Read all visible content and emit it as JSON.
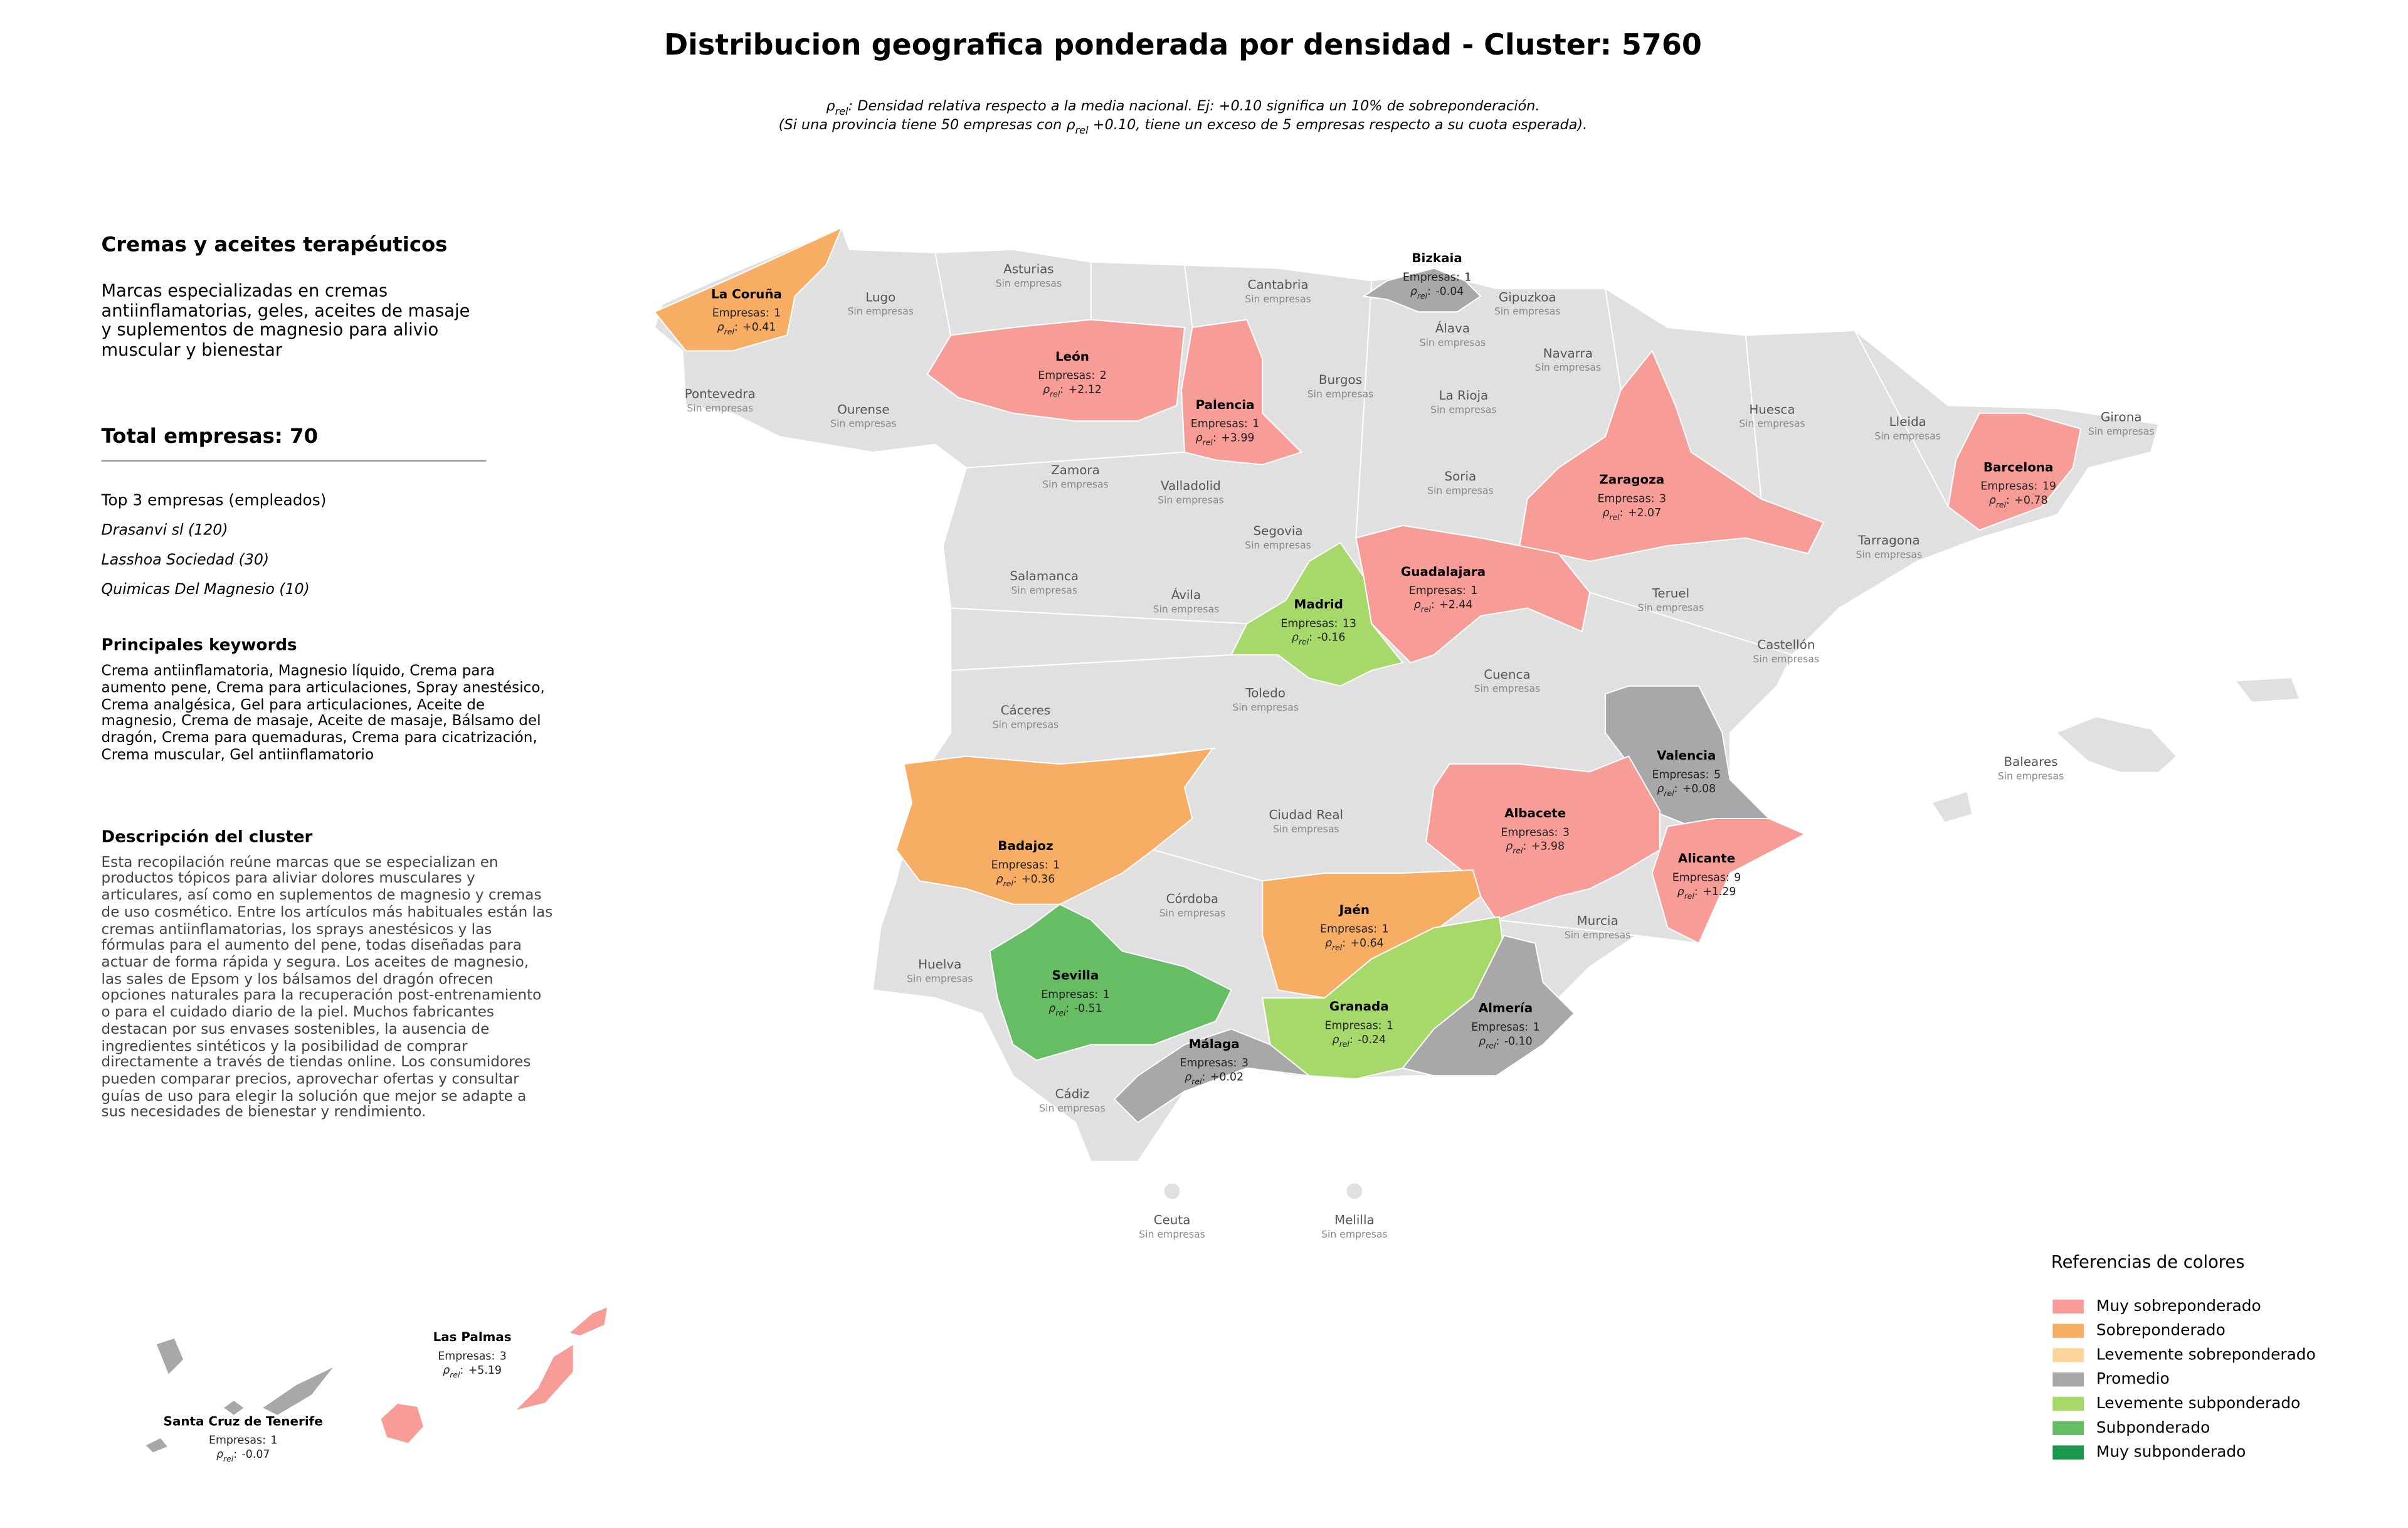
{
  "title": "Distribucion geografica ponderada por densidad - Cluster: 5760",
  "subtitle": {
    "line1": [
      "ρ",
      "rel",
      ": Densidad relativa respecto a la media nacional. Ej: +0.10 significa un 10% de sobreponderación."
    ],
    "line2": [
      "(Si una provincia tiene 50 empresas con ",
      "ρ",
      "rel",
      " +0.10, tiene un exceso de 5 empresas respecto a su cuota esperada)."
    ]
  },
  "panel": {
    "cluster_name": "Cremas y aceites terapéuticos",
    "short_description": "Marcas especializadas en cremas antiinflamatorias, geles, aceites de masaje y suplementos de magnesio para alivio muscular y bienestar",
    "total_label": "Total empresas:",
    "total": 70,
    "top_heading": "Top 3 empresas (empleados)",
    "top": [
      "Drasanvi sl (120)",
      "Lasshoa Sociedad (30)",
      "Quimicas Del Magnesio (10)"
    ],
    "keywords_heading": "Principales keywords",
    "keywords": "Crema antiinflamatoria, Magnesio líquido, Crema para aumento pene, Crema para articulaciones, Spray anestésico, Crema analgésica, Gel para articulaciones, Aceite de magnesio, Crema de masaje, Aceite de masaje, Bálsamo del dragón, Crema para quemaduras, Crema para cicatrización, Crema muscular, Gel antiinflamatorio",
    "description_heading": "Descripción del cluster",
    "description": "Esta recopilación reúne marcas que se especializan en productos tópicos para aliviar dolores musculares y articulares, así como en suplementos de magnesio y cremas de uso cosmético. Entre los artículos más habituales están las cremas antiinflamatorias, los sprays anestésicos y las fórmulas para el aumento del pene, todas diseñadas para actuar de forma rápida y segura. Los aceites de magnesio, las sales de Epsom y los bálsamos del dragón ofrecen opciones naturales para la recuperación post-entrenamiento o para el cuidado diario de la piel. Muchos fabricantes destacan por sus envases sostenibles, la ausencia de ingredientes sintéticos y la posibilidad de comprar directamente a través de tiendas online. Los consumidores pueden comparar precios, aprovechar ofertas y consultar guías de uso para elegir la solución que mejor se adapte a sus necesidades de bienestar y rendimiento."
  },
  "map": {
    "empresas_label": "Empresas:",
    "no_companies_label": "Sin empresas",
    "rho_label": {
      "symbol": "ρ",
      "sub": "rel",
      "suffix": ":"
    },
    "provinces": [
      {
        "name": "La Coruña",
        "empresas": 1,
        "rho": "+0.41",
        "class": 1
      },
      {
        "name": "Lugo"
      },
      {
        "name": "Asturias"
      },
      {
        "name": "Cantabria"
      },
      {
        "name": "Bizkaia",
        "empresas": 1,
        "rho": "-0.04",
        "class": 3
      },
      {
        "name": "Gipuzkoa"
      },
      {
        "name": "Álava"
      },
      {
        "name": "Navarra"
      },
      {
        "name": "Pontevedra"
      },
      {
        "name": "Ourense"
      },
      {
        "name": "León",
        "empresas": 2,
        "rho": "+2.12",
        "class": 0
      },
      {
        "name": "Palencia",
        "empresas": 1,
        "rho": "+3.99",
        "class": 0
      },
      {
        "name": "Burgos"
      },
      {
        "name": "La Rioja"
      },
      {
        "name": "Huesca"
      },
      {
        "name": "Lleida"
      },
      {
        "name": "Girona"
      },
      {
        "name": "Zaragoza",
        "empresas": 3,
        "rho": "+2.07",
        "class": 0
      },
      {
        "name": "Barcelona",
        "empresas": 19,
        "rho": "+0.78",
        "class": 0
      },
      {
        "name": "Zamora"
      },
      {
        "name": "Valladolid"
      },
      {
        "name": "Soria"
      },
      {
        "name": "Segovia"
      },
      {
        "name": "Tarragona"
      },
      {
        "name": "Salamanca"
      },
      {
        "name": "Ávila"
      },
      {
        "name": "Madrid",
        "empresas": 13,
        "rho": "-0.16",
        "class": 4
      },
      {
        "name": "Guadalajara",
        "empresas": 1,
        "rho": "+2.44",
        "class": 0
      },
      {
        "name": "Teruel"
      },
      {
        "name": "Castellón"
      },
      {
        "name": "Cuenca"
      },
      {
        "name": "Cáceres"
      },
      {
        "name": "Toledo"
      },
      {
        "name": "Valencia",
        "empresas": 5,
        "rho": "+0.08",
        "class": 3
      },
      {
        "name": "Baleares"
      },
      {
        "name": "Albacete",
        "empresas": 3,
        "rho": "+3.98",
        "class": 0
      },
      {
        "name": "Badajoz",
        "empresas": 1,
        "rho": "+0.36",
        "class": 1
      },
      {
        "name": "Ciudad Real"
      },
      {
        "name": "Alicante",
        "empresas": 9,
        "rho": "+1.29",
        "class": 0
      },
      {
        "name": "Córdoba"
      },
      {
        "name": "Jaén",
        "empresas": 1,
        "rho": "+0.64",
        "class": 1
      },
      {
        "name": "Murcia"
      },
      {
        "name": "Huelva"
      },
      {
        "name": "Sevilla",
        "empresas": 1,
        "rho": "-0.51",
        "class": 5
      },
      {
        "name": "Granada",
        "empresas": 1,
        "rho": "-0.24",
        "class": 4
      },
      {
        "name": "Almería",
        "empresas": 1,
        "rho": "-0.10",
        "class": 3
      },
      {
        "name": "Málaga",
        "empresas": 3,
        "rho": "+0.02",
        "class": 3
      },
      {
        "name": "Cádiz"
      },
      {
        "name": "Ceuta"
      },
      {
        "name": "Melilla"
      },
      {
        "name": "Las Palmas",
        "empresas": 3,
        "rho": "+5.19",
        "class": 0
      },
      {
        "name": "Santa Cruz de Tenerife",
        "empresas": 1,
        "rho": "-0.07",
        "class": 3
      }
    ]
  },
  "legend": {
    "title": "Referencias de colores",
    "items": [
      {
        "name": "Muy sobreponderado",
        "color": "#f79c97"
      },
      {
        "name": "Sobreponderado",
        "color": "#f7ad63"
      },
      {
        "name": "Levemente sobreponderado",
        "color": "#fdd59a"
      },
      {
        "name": "Promedio",
        "color": "#a8a8a8"
      },
      {
        "name": "Levemente subponderado",
        "color": "#a6d96a"
      },
      {
        "name": "Subponderado",
        "color": "#66bd63"
      },
      {
        "name": "Muy subponderado",
        "color": "#1a9850"
      }
    ]
  }
}
